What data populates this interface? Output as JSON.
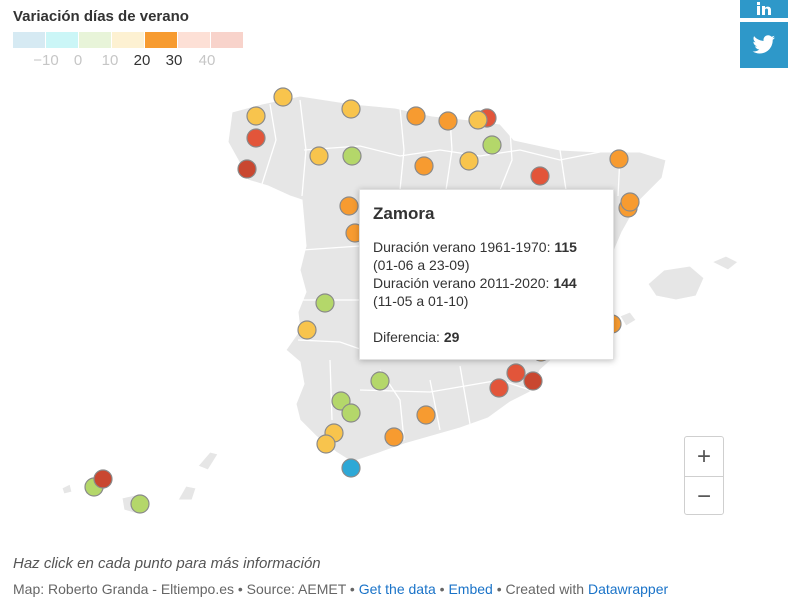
{
  "legend": {
    "title": "Variación días de verano",
    "swatches": [
      "#d6eaf3",
      "#cbf6f7",
      "#e8f4d9",
      "#fdf1d2",
      "#f79b30",
      "#fde0d6",
      "#f8d3cb"
    ],
    "ticks": [
      "−10",
      "0",
      "10",
      "20",
      "30",
      "40"
    ]
  },
  "social": {
    "linkedin_icon": "linkedin-icon",
    "twitter_icon": "twitter-icon"
  },
  "map": {
    "land_color": "#e6e6e6",
    "region_border_color": "#ffffff",
    "points": [
      {
        "c": "#f8c44d"
      },
      {
        "c": "#f8c44d"
      },
      {
        "c": "#f8c44d"
      },
      {
        "c": "#f79b30"
      },
      {
        "c": "#e2553a"
      },
      {
        "c": "#f79b30"
      },
      {
        "c": "#f8c44d"
      },
      {
        "c": "#e2553a"
      },
      {
        "c": "#f8c44d"
      },
      {
        "c": "#b4d76a"
      },
      {
        "c": "#f79b30"
      },
      {
        "c": "#f8c44d"
      },
      {
        "c": "#b4d76a"
      },
      {
        "c": "#f79b30"
      },
      {
        "c": "#c94730"
      },
      {
        "c": "#e2553a"
      },
      {
        "c": "#f79b30"
      },
      {
        "c": "#f79b30"
      },
      {
        "c": "#f79b30"
      },
      {
        "c": "#f79b30"
      },
      {
        "c": "#b4d76a"
      },
      {
        "c": "#f8c44d"
      },
      {
        "c": "#f79b30"
      },
      {
        "c": "#e2553a"
      },
      {
        "c": "#e2553a"
      },
      {
        "c": "#c94730"
      },
      {
        "c": "#b4d76a"
      },
      {
        "c": "#b4d76a"
      },
      {
        "c": "#b4d76a"
      },
      {
        "c": "#f79b30"
      },
      {
        "c": "#f8c44d"
      },
      {
        "c": "#f8c44d"
      },
      {
        "c": "#f79b30"
      },
      {
        "c": "#2ea8d6"
      },
      {
        "c": "#b4d76a"
      },
      {
        "c": "#c94730"
      },
      {
        "c": "#b4d76a"
      },
      {
        "c": "#f79b30"
      }
    ]
  },
  "tooltip": {
    "title": "Zamora",
    "line1_label": "Duración verano 1961-1970: ",
    "line1_value": "115",
    "line1_dates": "(01-06 a 23-09)",
    "line2_label": "Duración verano 2011-2020: ",
    "line2_value": "144",
    "line2_dates": "(11-05 a 01-10)",
    "diff_label": "Diferencia: ",
    "diff_value": "29"
  },
  "zoom": {
    "plus": "+",
    "minus": "−"
  },
  "note": "Haz click en cada punto para más información",
  "footer": {
    "credit": "Map: Roberto Granda - Eltiempo.es • Source: AEMET • ",
    "get_data": "Get the data",
    "sep1": " • ",
    "embed": "Embed",
    "sep2": " • Created with ",
    "datawrapper": "Datawrapper"
  }
}
